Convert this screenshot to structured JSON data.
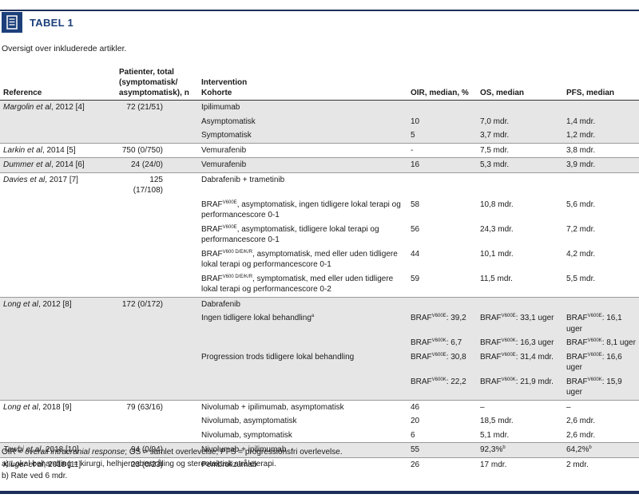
{
  "header": {
    "title": "TABEL 1"
  },
  "subtitle": "Oversigt over inkluderede artikler.",
  "table": {
    "columns": [
      "Reference",
      [
        "Patienter, total",
        "(symptomatisk/",
        "asymptomatisk), n"
      ],
      [
        "Intervention",
        "Kohorte"
      ],
      "OIR, median, %",
      "OS, median",
      "PFS, median"
    ],
    "groups": [
      {
        "reference": {
          "it": "Margolin et al",
          "post": ", 2012 [4]"
        },
        "patients": "72 (21/51)",
        "rows": [
          {
            "intervention": "Ipilimumab"
          },
          {
            "intervention": "Asymptomatisk",
            "oir": "10",
            "os": "7,0 mdr.",
            "pfs": "1,4 mdr."
          },
          {
            "intervention": "Symptomatisk",
            "oir": "5",
            "os": "3,7 mdr.",
            "pfs": "1,2 mdr."
          }
        ]
      },
      {
        "reference": {
          "it": "Larkin et al",
          "post": ", 2014 [5]"
        },
        "patients": "750 (0/750)",
        "rows": [
          {
            "intervention": "Vemurafenib",
            "oir": "-",
            "os": "7,5 mdr.",
            "pfs": "3,8 mdr."
          }
        ]
      },
      {
        "reference": {
          "it": "Dummer et al",
          "post": ", 2014 [6]"
        },
        "patients": "24 (24/0)",
        "rows": [
          {
            "intervention": "Vemurafenib",
            "oir": "16",
            "os": "5,3 mdr.",
            "pfs": "3,9 mdr."
          }
        ]
      },
      {
        "reference": {
          "it": "Davies et al",
          "post": ", 2017 [7]"
        },
        "patients": "125 (17/108)",
        "rows": [
          {
            "intervention": "Dabrafenib + trametinib"
          },
          {
            "intervention": {
              "pre": "BRAF",
              "sup": "V600E",
              "post": ", asymptomatisk, ingen tidligere lokal terapi og performancescore 0-1"
            },
            "oir": "58",
            "os": "10,8 mdr.",
            "pfs": "5,6 mdr."
          },
          {
            "intervention": {
              "pre": "BRAF",
              "sup": "V600E",
              "post": ", asymptomatisk, tidligere lokal terapi og performancescore 0-1"
            },
            "oir": "56",
            "os": "24,3 mdr.",
            "pfs": "7,2 mdr."
          },
          {
            "intervention": {
              "pre": "BRAF",
              "sup": "V600 D/E/K/R",
              "post": ", asymptomatisk, med eller uden tidligere lokal terapi og performancescore 0-1"
            },
            "oir": "44",
            "os": "10,1 mdr.",
            "pfs": "4,2 mdr."
          },
          {
            "intervention": {
              "pre": "BRAF",
              "sup": "V600 D/E/K/R",
              "post": ", symptomatisk, med eller uden tidligere lokal terapi og performancescore 0-2"
            },
            "oir": "59",
            "os": "11,5 mdr.",
            "pfs": "5,5 mdr."
          }
        ]
      },
      {
        "reference": {
          "it": "Long et al",
          "post": ", 2012 [8]"
        },
        "patients": "172 (0/172)",
        "rows": [
          {
            "intervention": "Dabrafenib"
          },
          {
            "intervention": {
              "pre": "Ingen tidligere lokal behandling",
              "sup": "a"
            },
            "oir": {
              "pre": "BRAF",
              "sup": "V600E",
              "post": ": 39,2"
            },
            "os": {
              "pre": "BRAF",
              "sup": "V600E",
              "post": ": 33,1 uger"
            },
            "pfs": {
              "pre": "BRAF",
              "sup": "V600E",
              "post": ": 16,1 uger"
            }
          },
          {
            "oir": {
              "pre": "BRAF",
              "sup": "V600K",
              "post": ": 6,7"
            },
            "os": {
              "pre": "BRAF",
              "sup": "V600K",
              "post": ": 16,3 uger"
            },
            "pfs": {
              "pre": "BRAF",
              "sup": "V600K",
              "post": ": 8,1 uger"
            }
          },
          {
            "intervention": "Progression trods tidligere lokal behandling",
            "oir": {
              "pre": "BRAF",
              "sup": "V600E",
              "post": ": 30,8"
            },
            "os": {
              "pre": "BRAF",
              "sup": "V600E",
              "post": ": 31,4 mdr."
            },
            "pfs": {
              "pre": "BRAF",
              "sup": "V600E",
              "post": ": 16,6 uger"
            }
          },
          {
            "oir": {
              "pre": "BRAF",
              "sup": "V600K",
              "post": ": 22,2"
            },
            "os": {
              "pre": "BRAF",
              "sup": "V600K",
              "post": ": 21,9 mdr."
            },
            "pfs": {
              "pre": "BRAF",
              "sup": "V600K",
              "post": ": 15,9 uger"
            }
          }
        ]
      },
      {
        "reference": {
          "it": "Long et al",
          "post": ", 2018 [9]"
        },
        "patients": "79 (63/16)",
        "rows": [
          {
            "intervention": "Nivolumab + ipilimumab, asymptomatisk",
            "oir": "46",
            "os": "–",
            "pfs": "–"
          },
          {
            "intervention": "Nivolumab, asymptomatisk",
            "oir": "20",
            "os": "18,5 mdr.",
            "pfs": "2,6 mdr."
          },
          {
            "intervention": "Nivolumab, symptomatisk",
            "oir": "6",
            "os": "5,1 mdr.",
            "pfs": "2,6 mdr."
          }
        ]
      },
      {
        "reference": {
          "it": "Tawbi et al",
          "post": ", 2018 [10]"
        },
        "patients": "94 (0/94)",
        "rows": [
          {
            "intervention": "Nivolumab + ipilimumab",
            "oir": "55",
            "os": {
              "pre": "92,3%",
              "sup": "b"
            },
            "pfs": {
              "pre": "64,2%",
              "sup": "b"
            }
          }
        ]
      },
      {
        "reference": {
          "it": "Kluger et al",
          "post": ", 2018 [11]"
        },
        "patients": "23 (0/23)",
        "rows": [
          {
            "intervention": "Pembrolizumab",
            "oir": "26",
            "os": "17 mdr.",
            "pfs": "2 mdr."
          }
        ]
      }
    ]
  },
  "notes": [
    {
      "pre": "OIR = ",
      "it": "overall intracranial response",
      "post": "; OS = samlet overlevelse; PFS = progressionsfri overlevelse."
    },
    "a) Lokal behandling = kirurgi, helhjernebestråling og stereotaktisk stråleterapi.",
    "b) Rate ved 6 mdr."
  ]
}
